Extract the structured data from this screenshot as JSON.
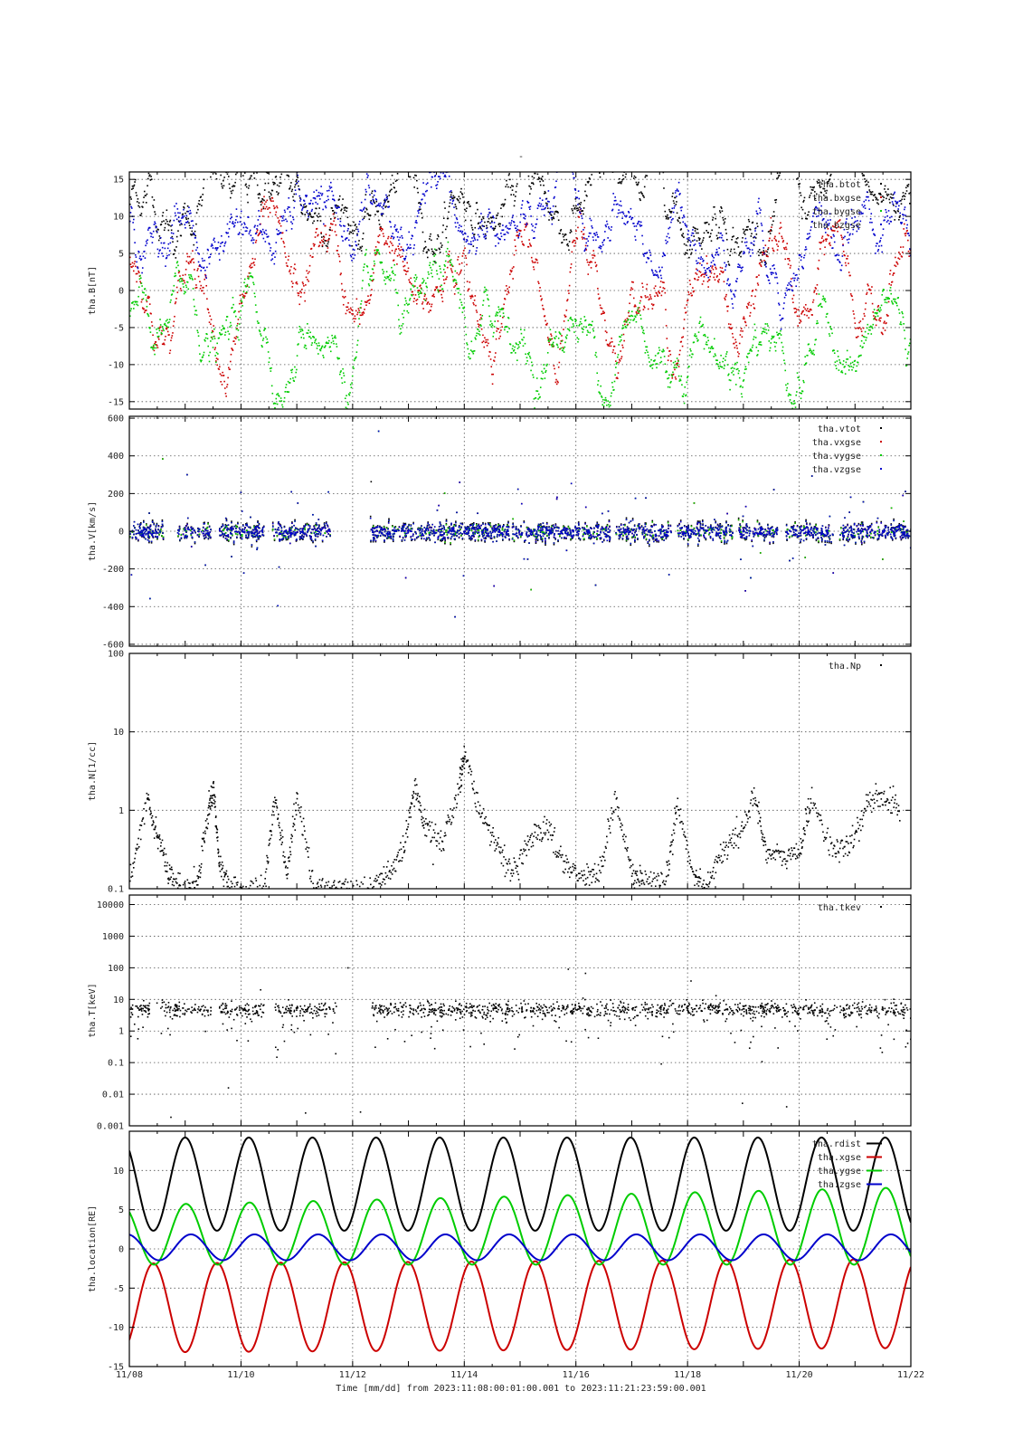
{
  "page": {
    "title": "-"
  },
  "colors": {
    "black": "#000000",
    "red": "#cc0000",
    "green": "#00cc00",
    "blue": "#0000cc",
    "grid": "#555555"
  },
  "time_axis": {
    "tick_labels": [
      "11/08",
      "11/10",
      "11/12",
      "11/14",
      "11/16",
      "11/18",
      "11/20",
      "11/22"
    ],
    "xlabel": "Time [mm/dd]  from 2023:11:08:00:01:00.001  to  2023:11:21:23:59:00.001",
    "range_days": [
      0,
      14
    ]
  },
  "chart_data": [
    {
      "type": "scatter",
      "ylabel": "tha.B[nT]",
      "ylim": [
        -16,
        16
      ],
      "yticks": [
        15,
        10,
        5,
        0,
        -5,
        -10,
        -15
      ],
      "grid": true,
      "legend": "top-right",
      "series": [
        {
          "name": "tha.btot",
          "color": "black"
        },
        {
          "name": "tha.bxgse",
          "color": "red"
        },
        {
          "name": "tha.bygse",
          "color": "green"
        },
        {
          "name": "tha.bzgse",
          "color": "blue"
        }
      ]
    },
    {
      "type": "scatter",
      "ylabel": "tha.V[km/s]",
      "ylim": [
        -610,
        610
      ],
      "yticks": [
        600,
        400,
        200,
        0,
        -200,
        -400,
        -600
      ],
      "grid": true,
      "legend": "top-right",
      "series": [
        {
          "name": "tha.vtot",
          "color": "black"
        },
        {
          "name": "tha.vxgse",
          "color": "red"
        },
        {
          "name": "tha.vygse",
          "color": "green"
        },
        {
          "name": "tha.vzgse",
          "color": "blue"
        }
      ],
      "data_gaps_days": [
        [
          0.0,
          0.0
        ],
        [
          0.6,
          0.85
        ],
        [
          1.45,
          1.6
        ],
        [
          2.4,
          2.55
        ],
        [
          3.6,
          4.3
        ],
        [
          6.8,
          6.85
        ],
        [
          8.6,
          8.7
        ],
        [
          9.7,
          9.8
        ],
        [
          10.8,
          10.9
        ],
        [
          11.6,
          11.75
        ],
        [
          12.6,
          12.7
        ]
      ]
    },
    {
      "type": "scatter",
      "ylabel": "tha.N[1/cc]",
      "yscale": "log",
      "ylim": [
        0.1,
        100
      ],
      "ytick_labels": [
        "100",
        "10",
        "1",
        "0.1"
      ],
      "grid": true,
      "legend": "top-right",
      "series": [
        {
          "name": "tha.Np",
          "color": "black",
          "x": [
            0.0,
            0.3,
            0.5,
            0.7,
            0.9,
            1.2,
            1.4,
            1.5,
            1.6,
            1.8,
            2.1,
            2.4,
            2.6,
            2.8,
            3.0,
            3.3,
            3.6,
            3.7,
            3.9,
            4.3,
            4.6,
            4.9,
            5.1,
            5.3,
            5.6,
            5.9,
            6.0,
            6.3,
            6.6,
            6.9,
            7.2,
            7.5,
            7.8,
            8.1,
            8.4,
            8.7,
            9.0,
            9.2,
            9.6,
            9.8,
            10.1,
            10.3,
            10.6,
            10.9,
            11.2,
            11.4,
            11.7,
            12.0,
            12.2,
            12.6,
            12.9,
            13.2,
            13.5,
            13.8
          ],
          "y": [
            0.12,
            1.5,
            0.5,
            0.15,
            0.1,
            0.12,
            1.0,
            2.0,
            0.2,
            0.1,
            0.1,
            0.1,
            1.5,
            0.15,
            1.5,
            0.1,
            0.1,
            0.1,
            0.1,
            0.1,
            0.15,
            0.3,
            2.0,
            0.6,
            0.4,
            2.0,
            6.0,
            0.8,
            0.35,
            0.15,
            0.5,
            0.6,
            0.2,
            0.15,
            0.15,
            1.5,
            0.15,
            0.12,
            0.12,
            1.2,
            0.15,
            0.1,
            0.3,
            0.5,
            1.5,
            0.3,
            0.25,
            0.3,
            1.5,
            0.3,
            0.35,
            1.2,
            1.6,
            1.0
          ]
        }
      ]
    },
    {
      "type": "scatter",
      "ylabel": "tha.T[keV]",
      "yscale": "log",
      "ylim": [
        0.001,
        20000
      ],
      "ytick_labels": [
        "10000",
        "1000",
        "100",
        "10",
        "1",
        "0.1",
        "0.01",
        "0.001"
      ],
      "grid": true,
      "legend": "top-right",
      "series": [
        {
          "name": "tha.tkev",
          "color": "black"
        }
      ]
    },
    {
      "type": "line",
      "ylabel": "tha.location[RE]",
      "ylim": [
        -15,
        15
      ],
      "yticks": [
        10,
        5,
        0,
        -5,
        -10,
        -15
      ],
      "grid": true,
      "legend": "top-right",
      "orbit": {
        "period_days": 1.14,
        "first_apogee_days": 1.0,
        "rdist_max": 13.2,
        "xgse_min": -12.6,
        "ygse_max_start": 6.3,
        "ygse_max_end": 8.2,
        "zgse_max": 1.8,
        "zgse_min": -1.5
      },
      "series": [
        {
          "name": "tha.rdist",
          "color": "black"
        },
        {
          "name": "tha.xgse",
          "color": "red"
        },
        {
          "name": "tha.ygse",
          "color": "green"
        },
        {
          "name": "tha.zgse",
          "color": "blue"
        }
      ]
    }
  ]
}
